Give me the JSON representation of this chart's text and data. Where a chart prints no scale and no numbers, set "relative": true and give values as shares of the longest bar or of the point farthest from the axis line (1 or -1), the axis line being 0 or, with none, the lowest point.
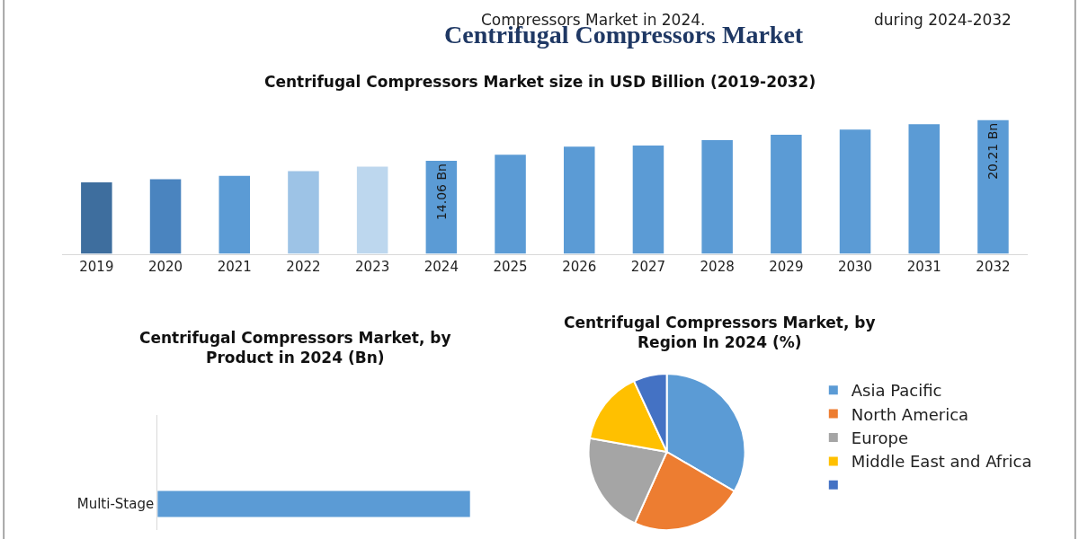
{
  "chart_data": [
    {
      "type": "bar",
      "title": "Centrifugal Compressors Market",
      "subtitle": "Centrifugal Compressors Market size in USD Billion (2019-2032)",
      "tick_labels": "x",
      "annotations": [
        "Compressors Market in 2024.",
        "during 2024-2032"
      ],
      "categories": [
        "2019",
        "2020",
        "2021",
        "2022",
        "2023",
        "2024",
        "2025",
        "2026",
        "2027",
        "2028",
        "2029",
        "2030",
        "2031",
        "2032"
      ],
      "values": [
        10.8,
        11.3,
        11.8,
        12.5,
        13.2,
        14.06,
        15.0,
        16.2,
        16.4,
        17.2,
        18.0,
        18.8,
        19.6,
        20.21
      ],
      "colors": [
        "#3e6e9e",
        "#4a84bf",
        "#5b9bd5",
        "#9dc3e6",
        "#bdd7ee",
        "#5b9bd5",
        "#5b9bd5",
        "#5b9bd5",
        "#5b9bd5",
        "#5b9bd5",
        "#5b9bd5",
        "#5b9bd5",
        "#5b9bd5",
        "#5b9bd5"
      ],
      "value_labels": [
        null,
        null,
        null,
        null,
        null,
        "14.06 Bn",
        null,
        null,
        null,
        null,
        null,
        null,
        null,
        "20.21 Bn"
      ],
      "legend": false
    },
    {
      "type": "bar",
      "orientation": "horizontal",
      "title": "Centrifugal Compressors Market, by Product in 2024 (Bn)",
      "relative": true,
      "categories": [
        "Multi-Stage"
      ],
      "values": [
        1
      ],
      "color": "#5b9bd5",
      "legend": false
    },
    {
      "type": "pie",
      "title": "Centrifugal Compressors Market, by Region In 2024 (%)",
      "categories": [
        "Asia Pacific",
        "North America",
        "Europe",
        "Middle East and Africa",
        null
      ],
      "values": [
        33.4,
        23.3,
        21.1,
        15.3,
        6.9
      ],
      "colors": [
        "#5b9bd5",
        "#ed7d31",
        "#a5a5a5",
        "#ffc000",
        "#4472c4"
      ],
      "legend": "right"
    }
  ]
}
